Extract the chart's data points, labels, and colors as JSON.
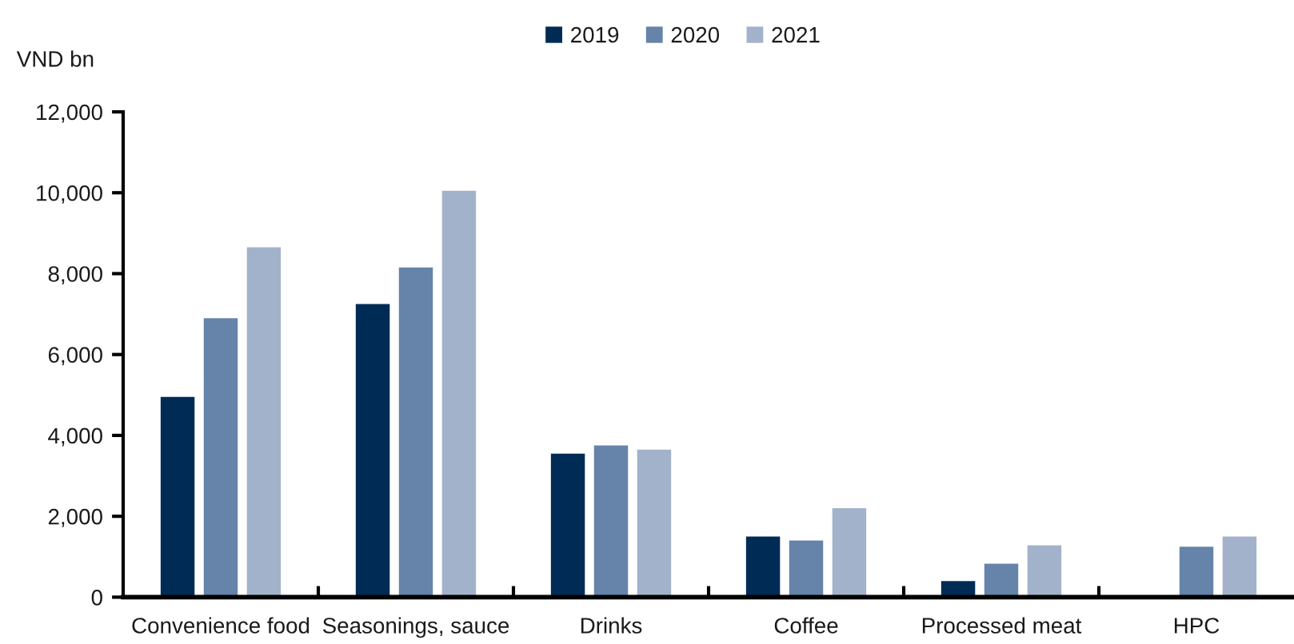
{
  "chart_data": {
    "type": "bar",
    "ylabel": "VND bn",
    "categories": [
      "Convenience food",
      "Seasonings, sauce",
      "Drinks",
      "Coffee",
      "Processed meat",
      "HPC"
    ],
    "series": [
      {
        "name": "2019",
        "color": "#002b55",
        "values": [
          4950,
          7250,
          3550,
          1500,
          400,
          null
        ]
      },
      {
        "name": "2020",
        "color": "#6683a9",
        "values": [
          6900,
          8150,
          3750,
          1400,
          830,
          1250
        ]
      },
      {
        "name": "2021",
        "color": "#a3b2cb",
        "values": [
          8650,
          10050,
          3650,
          2200,
          1280,
          1500
        ]
      }
    ],
    "ylim": [
      0,
      12000
    ],
    "yticks": [
      0,
      {
        "value": 2000,
        "label": "2,000"
      },
      {
        "value": 4000,
        "label": "4,000"
      },
      {
        "value": 6000,
        "label": "6,000"
      },
      {
        "value": 8000,
        "label": "8,000"
      },
      {
        "value": 10000,
        "label": "10,000"
      },
      {
        "value": 12000,
        "label": "12,000"
      }
    ],
    "legend": "top",
    "grid": false
  }
}
